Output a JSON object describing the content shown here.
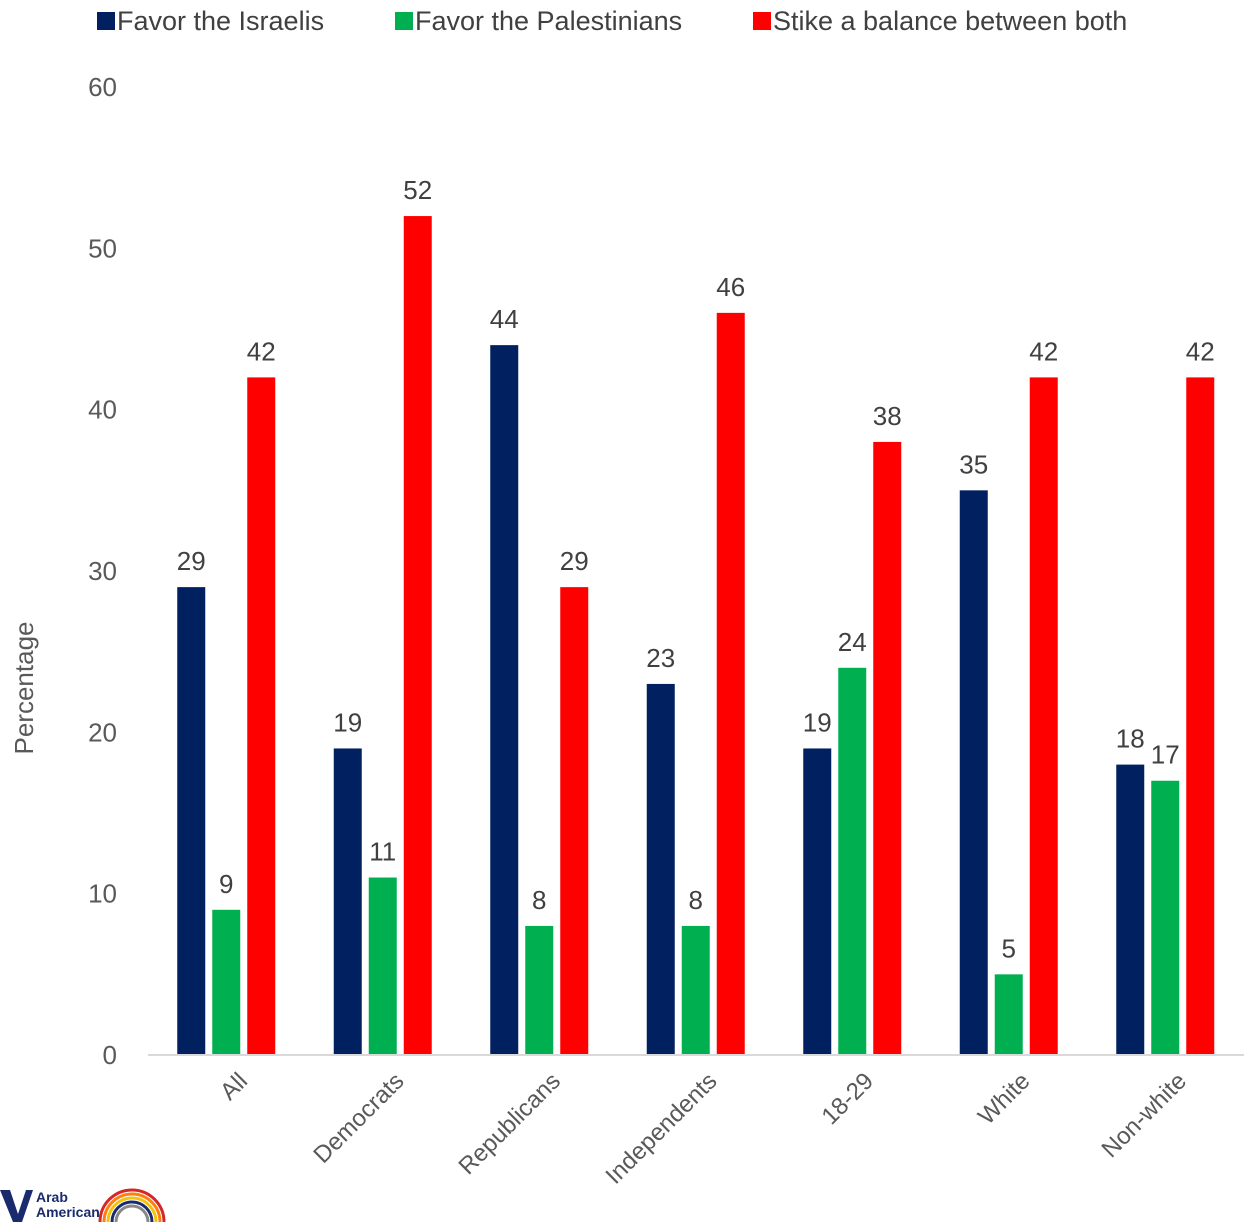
{
  "chart_data": {
    "type": "bar",
    "categories": [
      "All",
      "Democrats",
      "Republicans",
      "Independents",
      "18-29",
      "White",
      "Non-white"
    ],
    "series": [
      {
        "name": "Favor the Israelis",
        "color": "#002060",
        "values": [
          29,
          19,
          44,
          23,
          19,
          35,
          18
        ]
      },
      {
        "name": "Favor the Palestinians",
        "color": "#00B050",
        "values": [
          9,
          11,
          8,
          8,
          24,
          5,
          17
        ]
      },
      {
        "name": "Stike a balance between both",
        "color": "#FF0000",
        "values": [
          42,
          52,
          29,
          46,
          38,
          42,
          42
        ]
      }
    ],
    "ylabel": "Percentage",
    "xlabel": "",
    "ylim": [
      0,
      60
    ],
    "yticks": [
      0,
      10,
      20,
      30,
      40,
      50,
      60
    ],
    "grid": false,
    "legend_position": "top",
    "data_labels": true
  },
  "logo": {
    "line1": "Arab",
    "line2": "American"
  }
}
